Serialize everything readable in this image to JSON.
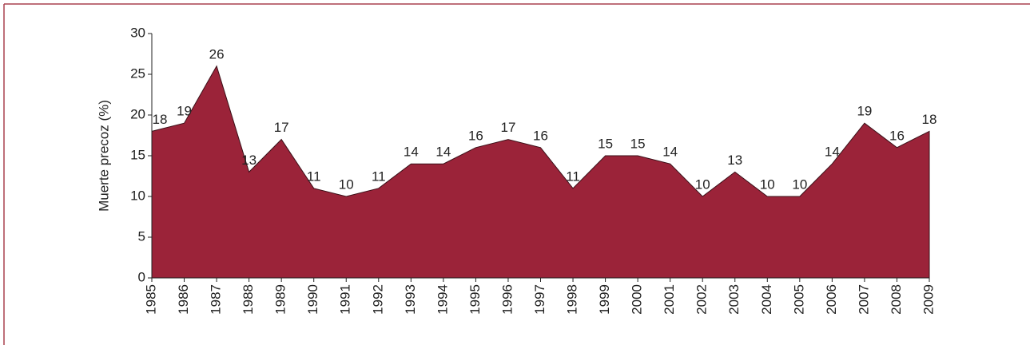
{
  "chart_data": {
    "type": "area",
    "y_label": "Muerte precoz (%)",
    "categories": [
      "1985",
      "1986",
      "1987",
      "1988",
      "1989",
      "1990",
      "1991",
      "1992",
      "1993",
      "1994",
      "1995",
      "1996",
      "1997",
      "1998",
      "1999",
      "2000",
      "2001",
      "2002",
      "2003",
      "2004",
      "2005",
      "2006",
      "2007",
      "2008",
      "2009"
    ],
    "values": [
      18,
      19,
      26,
      13,
      17,
      11,
      10,
      11,
      14,
      14,
      16,
      17,
      16,
      11,
      15,
      15,
      14,
      10,
      13,
      10,
      10,
      14,
      19,
      16,
      18
    ],
    "color": "#9b2339",
    "ylim": [
      0,
      30
    ],
    "yticks": [
      0,
      5,
      10,
      15,
      20,
      25,
      30
    ]
  }
}
